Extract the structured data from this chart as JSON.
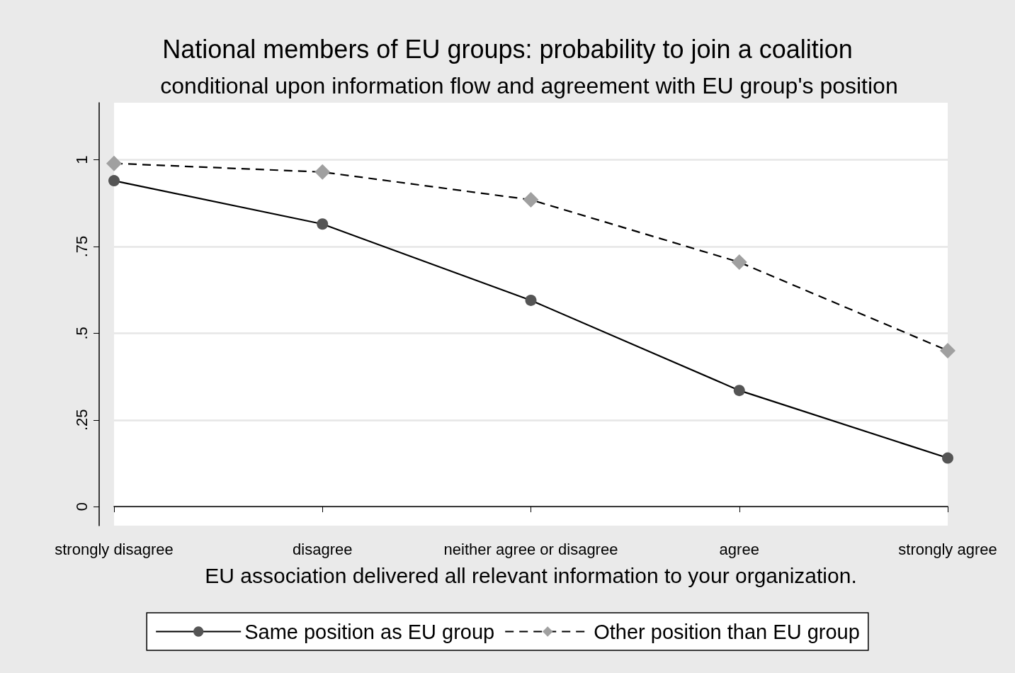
{
  "chart_data": {
    "type": "line",
    "title": "National members of EU groups: probability to join a coalition",
    "subtitle": "conditional upon information flow and agreement with EU group's position",
    "xlabel": "EU association delivered all relevant information to your organization.",
    "categories": [
      "strongly disagree",
      "disagree",
      "neither agree or disagree",
      "agree",
      "strongly agree"
    ],
    "series": [
      {
        "name": "Same position as EU group",
        "color": "#555555",
        "marker": "circle",
        "line_style": "solid",
        "values": [
          0.94,
          0.815,
          0.595,
          0.335,
          0.14
        ]
      },
      {
        "name": "Other position than EU group",
        "color": "#a0a0a0",
        "marker": "diamond",
        "line_style": "dashed",
        "values": [
          0.99,
          0.965,
          0.885,
          0.705,
          0.45
        ]
      }
    ],
    "ylim": [
      -0.055,
      1.165
    ],
    "yticks": [
      0,
      {
        "value": 0.25,
        "label": ".25"
      },
      {
        "value": 0.5,
        "label": ".5"
      },
      {
        "value": 0.75,
        "label": ".75"
      },
      1
    ],
    "grid": "y",
    "legend": "bottom"
  }
}
